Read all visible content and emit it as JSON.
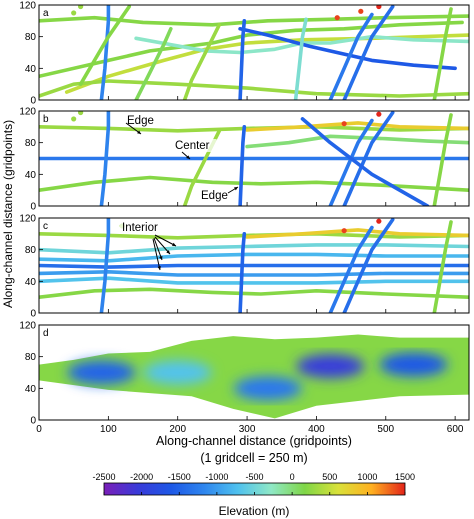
{
  "chart_data": {
    "type": "heatmap",
    "ylabel": "Along-channel distance (gridpoints)",
    "xlabel": "Along-channel distance (gridpoints)",
    "xlabel_note": "(1 gridcell = 250 m)",
    "xlim": [
      0,
      620
    ],
    "ylim": [
      0,
      120
    ],
    "x_ticks": [
      0,
      100,
      200,
      300,
      400,
      500,
      600
    ],
    "y_ticks": [
      0,
      40,
      80,
      120
    ],
    "colorbar": {
      "label": "Elevation (m)",
      "range": [
        -2500,
        1500
      ],
      "ticks": [
        -2500,
        -2000,
        -1500,
        -1000,
        -500,
        0,
        500,
        1000,
        1500
      ],
      "colors": [
        "#7a1fb8",
        "#3a3ad8",
        "#1e58e6",
        "#2f86ee",
        "#4fc1ee",
        "#8fe8c6",
        "#7fd647",
        "#d9e13a",
        "#ffb020",
        "#e3241a"
      ]
    },
    "panels": [
      {
        "label": "a",
        "tracks": [
          {
            "x": [
              0,
              100,
              160,
              250,
              300,
              370,
              440,
              520,
              610
            ],
            "y": [
              30,
              50,
              62,
              72,
              82,
              88,
              90,
              95,
              98
            ],
            "value": 200
          },
          {
            "x": [
              0,
              80,
              150,
              250,
              330,
              420,
              500,
              620
            ],
            "y": [
              100,
              104,
              98,
              95,
              100,
              102,
              104,
              106
            ],
            "value": 200
          },
          {
            "x": [
              40,
              100,
              180,
              240,
              300,
              380,
              480,
              620
            ],
            "y": [
              10,
              30,
              50,
              64,
              72,
              76,
              78,
              82
            ],
            "value": 500
          },
          {
            "x": [
              0,
              50,
              100,
              200,
              300,
              400,
              520,
              620
            ],
            "y": [
              5,
              20,
              24,
              20,
              15,
              8,
              5,
              8
            ],
            "value": 300
          },
          {
            "x": [
              140,
              190,
              240,
              290,
              340,
              380,
              420,
              480,
              540,
              620
            ],
            "y": [
              78,
              70,
              62,
              60,
              64,
              72,
              72,
              80,
              76,
              74
            ],
            "value": -300
          },
          {
            "x": [
              290,
              330,
              390,
              440,
              480,
              540,
              600
            ],
            "y": [
              90,
              82,
              68,
              58,
              50,
              44,
              40
            ],
            "value": -1600
          },
          {
            "x": [
              90,
              95,
              100,
              100
            ],
            "y": [
              0,
              40,
              100,
              125
            ],
            "value": -1200
          },
          {
            "x": [
              140,
              160,
              180,
              190
            ],
            "y": [
              0,
              35,
              70,
              90
            ],
            "value": 100
          },
          {
            "x": [
              210,
              220,
              240,
              260
            ],
            "y": [
              0,
              25,
              60,
              95
            ],
            "value": 300
          },
          {
            "x": [
              290,
              292,
              294,
              296
            ],
            "y": [
              0,
              40,
              80,
              100
            ],
            "value": -1500
          },
          {
            "x": [
              370,
              375,
              380,
              385
            ],
            "y": [
              0,
              40,
              80,
              102
            ],
            "value": -400
          },
          {
            "x": [
              420,
              440,
              460,
              480
            ],
            "y": [
              0,
              40,
              80,
              108
            ],
            "value": -1300
          },
          {
            "x": [
              440,
              460,
              480,
              510
            ],
            "y": [
              0,
              40,
              80,
              118
            ],
            "value": -1400
          },
          {
            "x": [
              570,
              578,
              586,
              594
            ],
            "y": [
              0,
              40,
              80,
              115
            ],
            "value": 200
          },
          {
            "x": [
              60,
              80,
              100,
              130
            ],
            "y": [
              20,
              50,
              80,
              118
            ],
            "value": 200
          }
        ],
        "blobs": [
          {
            "x": 430,
            "y": 104,
            "value": 1400
          },
          {
            "x": 464,
            "y": 112,
            "value": 1400
          },
          {
            "x": 490,
            "y": 118,
            "value": 1500
          },
          {
            "x": 50,
            "y": 110,
            "value": 300
          },
          {
            "x": 60,
            "y": 118,
            "value": 300
          }
        ]
      },
      {
        "label": "b",
        "annotations": [
          "Edge",
          "Center",
          "Edge"
        ],
        "tracks": [
          {
            "x": [
              0,
              620
            ],
            "y": [
              60,
              60
            ],
            "value": -1300
          },
          {
            "x": [
              0,
              100,
              200,
              300,
              400,
              520,
              620
            ],
            "y": [
              100,
              98,
              95,
              98,
              100,
              96,
              98
            ],
            "value": 300
          },
          {
            "x": [
              0,
              80,
              160,
              250,
              320,
              400,
              500,
              620
            ],
            "y": [
              20,
              30,
              36,
              30,
              28,
              30,
              26,
              20
            ],
            "value": 200
          },
          {
            "x": [
              300,
              360,
              420,
              500,
              560,
              620
            ],
            "y": [
              75,
              80,
              88,
              85,
              82,
              80
            ],
            "value": 0
          },
          {
            "x": [
              300,
              380,
              460,
              520,
              620
            ],
            "y": [
              96,
              100,
              105,
              100,
              98
            ],
            "value": 800
          },
          {
            "x": [
              90,
              95,
              100,
              100
            ],
            "y": [
              0,
              40,
              100,
              125
            ],
            "value": -1200
          },
          {
            "x": [
              210,
              220,
              240,
              260
            ],
            "y": [
              0,
              25,
              60,
              95
            ],
            "value": 300
          },
          {
            "x": [
              290,
              292,
              294,
              296
            ],
            "y": [
              0,
              40,
              80,
              100
            ],
            "value": -1500
          },
          {
            "x": [
              420,
              440,
              460,
              480
            ],
            "y": [
              0,
              40,
              80,
              108
            ],
            "value": -1300
          },
          {
            "x": [
              440,
              460,
              480,
              510
            ],
            "y": [
              0,
              40,
              80,
              118
            ],
            "value": -1400
          },
          {
            "x": [
              380,
              420,
              480,
              560
            ],
            "y": [
              110,
              80,
              40,
              0
            ],
            "value": -1500
          },
          {
            "x": [
              570,
              578,
              586,
              594
            ],
            "y": [
              0,
              40,
              80,
              115
            ],
            "value": 200
          }
        ],
        "blobs": [
          {
            "x": 440,
            "y": 104,
            "value": 1400
          },
          {
            "x": 490,
            "y": 116,
            "value": 1500
          },
          {
            "x": 50,
            "y": 110,
            "value": 300
          },
          {
            "x": 60,
            "y": 118,
            "value": 300
          }
        ]
      },
      {
        "label": "c",
        "annotations": [
          "Interior"
        ],
        "tracks": [
          {
            "x": [
              0,
              100,
              200,
              300,
              400,
              500,
              620
            ],
            "y": [
              60,
              58,
              60,
              60,
              60,
              60,
              60
            ],
            "value": -1400
          },
          {
            "x": [
              0,
              100,
              200,
              300,
              400,
              500,
              620
            ],
            "y": [
              68,
              66,
              72,
              74,
              74,
              72,
              72
            ],
            "value": -800
          },
          {
            "x": [
              0,
              100,
              200,
              300,
              400,
              500,
              620
            ],
            "y": [
              50,
              52,
              48,
              48,
              48,
              50,
              50
            ],
            "value": -1000
          },
          {
            "x": [
              0,
              100,
              200,
              300,
              400,
              500,
              620
            ],
            "y": [
              80,
              76,
              82,
              84,
              86,
              86,
              84
            ],
            "value": -500
          },
          {
            "x": [
              0,
              100,
              200,
              300,
              400,
              500,
              620
            ],
            "y": [
              40,
              44,
              38,
              38,
              38,
              40,
              40
            ],
            "value": -700
          },
          {
            "x": [
              0,
              100,
              200,
              300,
              400,
              520,
              620
            ],
            "y": [
              100,
              98,
              95,
              98,
              100,
              96,
              98
            ],
            "value": 300
          },
          {
            "x": [
              0,
              80,
              160,
              250,
              320,
              400,
              500,
              620
            ],
            "y": [
              20,
              28,
              30,
              26,
              24,
              28,
              24,
              20
            ],
            "value": 200
          },
          {
            "x": [
              300,
              380,
              460,
              520,
              620
            ],
            "y": [
              96,
              100,
              105,
              100,
              98
            ],
            "value": 800
          },
          {
            "x": [
              90,
              95,
              100,
              100
            ],
            "y": [
              0,
              40,
              100,
              125
            ],
            "value": -1200
          },
          {
            "x": [
              290,
              292,
              294,
              296
            ],
            "y": [
              0,
              40,
              80,
              100
            ],
            "value": -1500
          },
          {
            "x": [
              420,
              440,
              460,
              480
            ],
            "y": [
              0,
              40,
              80,
              108
            ],
            "value": -1300
          },
          {
            "x": [
              440,
              460,
              480,
              510
            ],
            "y": [
              0,
              40,
              80,
              118
            ],
            "value": -1400
          },
          {
            "x": [
              570,
              578,
              586,
              594
            ],
            "y": [
              0,
              40,
              80,
              115
            ],
            "value": 200
          }
        ],
        "blobs": [
          {
            "x": 440,
            "y": 104,
            "value": 1400
          },
          {
            "x": 490,
            "y": 116,
            "value": 1500
          },
          {
            "x": 120,
            "y": 110,
            "value": 300
          }
        ]
      },
      {
        "label": "d",
        "surface": {
          "upper_edge": [
            [
              0,
              70
            ],
            [
              50,
              76
            ],
            [
              100,
              84
            ],
            [
              160,
              86
            ],
            [
              220,
              100
            ],
            [
              280,
              106
            ],
            [
              340,
              102
            ],
            [
              400,
              104
            ],
            [
              460,
              108
            ],
            [
              520,
              104
            ],
            [
              620,
              104
            ]
          ],
          "lower_edge": [
            [
              0,
              50
            ],
            [
              50,
              44
            ],
            [
              100,
              38
            ],
            [
              160,
              34
            ],
            [
              220,
              30
            ],
            [
              280,
              14
            ],
            [
              340,
              2
            ],
            [
              400,
              18
            ],
            [
              460,
              24
            ],
            [
              520,
              30
            ],
            [
              620,
              32
            ]
          ],
          "lows": [
            {
              "x": 90,
              "y": 60,
              "value": -1500
            },
            {
              "x": 420,
              "y": 68,
              "value": -2000
            },
            {
              "x": 540,
              "y": 70,
              "value": -1600
            },
            {
              "x": 330,
              "y": 40,
              "value": -1300
            },
            {
              "x": 200,
              "y": 60,
              "value": -700
            }
          ]
        }
      }
    ]
  }
}
